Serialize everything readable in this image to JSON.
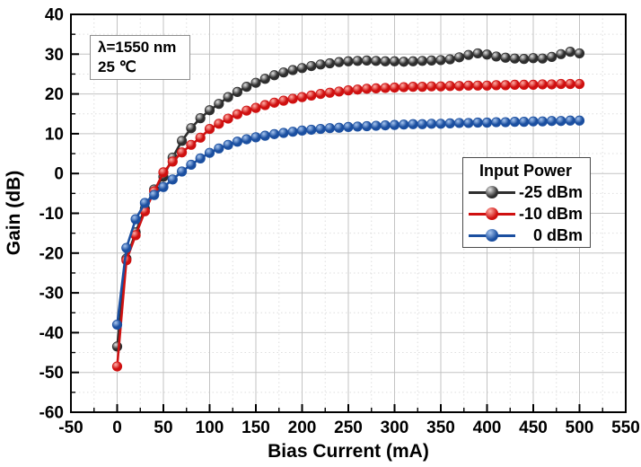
{
  "chart_data": {
    "type": "line",
    "title": "",
    "xlabel": "Bias Current (mA)",
    "ylabel": "Gain (dB)",
    "xlim": [
      -50,
      550
    ],
    "ylim": [
      -60,
      40
    ],
    "x_major_tick_step": 50,
    "x_minor_tick_step": 25,
    "y_major_tick_step": 10,
    "y_minor_tick_step": 5,
    "x_tick_labels": [
      "-50",
      "0",
      "50",
      "100",
      "150",
      "200",
      "250",
      "300",
      "350",
      "400",
      "450",
      "500",
      "550"
    ],
    "y_tick_labels": [
      "40",
      "30",
      "20",
      "10",
      "0",
      "-10",
      "-20",
      "-30",
      "-40",
      "-50",
      "-60"
    ],
    "grid": {
      "major": "solid",
      "minor": "dotted",
      "major_color": "#c3c3c3",
      "minor_color": "#dedede"
    },
    "legend": {
      "title": "Input Power",
      "position": "right-middle"
    },
    "annotation": {
      "lines": [
        "λ=1550 nm",
        "25 ℃"
      ]
    },
    "x": [
      0,
      10,
      20,
      30,
      40,
      50,
      60,
      70,
      80,
      90,
      100,
      110,
      120,
      130,
      140,
      150,
      160,
      170,
      180,
      190,
      200,
      210,
      220,
      230,
      240,
      250,
      260,
      270,
      280,
      290,
      300,
      310,
      320,
      330,
      340,
      350,
      360,
      370,
      380,
      390,
      400,
      410,
      420,
      430,
      440,
      450,
      460,
      470,
      480,
      490,
      500
    ],
    "series": [
      {
        "name": "-25 dBm",
        "color": "#2e2e2e",
        "highlight": "#e4e4e4",
        "values": [
          -43.5,
          -21.4,
          -14.8,
          -8.8,
          -4.0,
          -0.8,
          4.0,
          8.2,
          11.4,
          13.9,
          15.9,
          17.5,
          19.2,
          20.5,
          21.8,
          22.8,
          23.8,
          24.7,
          25.4,
          26.0,
          26.5,
          27.0,
          27.4,
          27.7,
          28.0,
          28.2,
          28.3,
          28.4,
          28.3,
          28.2,
          28.2,
          28.1,
          28.2,
          28.3,
          28.4,
          28.5,
          28.7,
          29.2,
          29.8,
          30.2,
          29.9,
          29.4,
          29.1,
          28.9,
          28.8,
          29.0,
          28.9,
          29.3,
          30.0,
          30.6,
          30.2
        ]
      },
      {
        "name": "-10 dBm",
        "color": "#cf1010",
        "highlight": "#ffb0a8",
        "values": [
          -48.5,
          -21.8,
          -15.5,
          -9.5,
          -4.5,
          0.3,
          3.0,
          5.3,
          7.2,
          9.0,
          11.2,
          12.5,
          13.8,
          14.9,
          15.8,
          16.5,
          17.2,
          17.8,
          18.3,
          18.8,
          19.2,
          19.6,
          20.0,
          20.3,
          20.6,
          20.9,
          21.1,
          21.3,
          21.4,
          21.5,
          21.6,
          21.7,
          21.8,
          21.8,
          21.9,
          21.9,
          22.0,
          22.0,
          22.1,
          22.1,
          22.1,
          22.2,
          22.2,
          22.3,
          22.3,
          22.3,
          22.4,
          22.4,
          22.5,
          22.5,
          22.5
        ]
      },
      {
        "name": "0 dBm",
        "color": "#1b4fa0",
        "highlight": "#a8c6ef",
        "values": [
          -38.0,
          -18.7,
          -11.5,
          -7.4,
          -5.4,
          -3.4,
          -1.5,
          0.5,
          2.2,
          3.8,
          5.2,
          6.3,
          7.2,
          8.0,
          8.6,
          9.1,
          9.5,
          9.9,
          10.2,
          10.5,
          10.8,
          11.0,
          11.2,
          11.4,
          11.5,
          11.7,
          11.8,
          11.9,
          12.0,
          12.1,
          12.2,
          12.3,
          12.4,
          12.4,
          12.5,
          12.5,
          12.6,
          12.7,
          12.7,
          12.8,
          12.8,
          12.9,
          12.9,
          13.0,
          13.0,
          13.1,
          13.1,
          13.2,
          13.2,
          13.3,
          13.3
        ]
      }
    ]
  }
}
